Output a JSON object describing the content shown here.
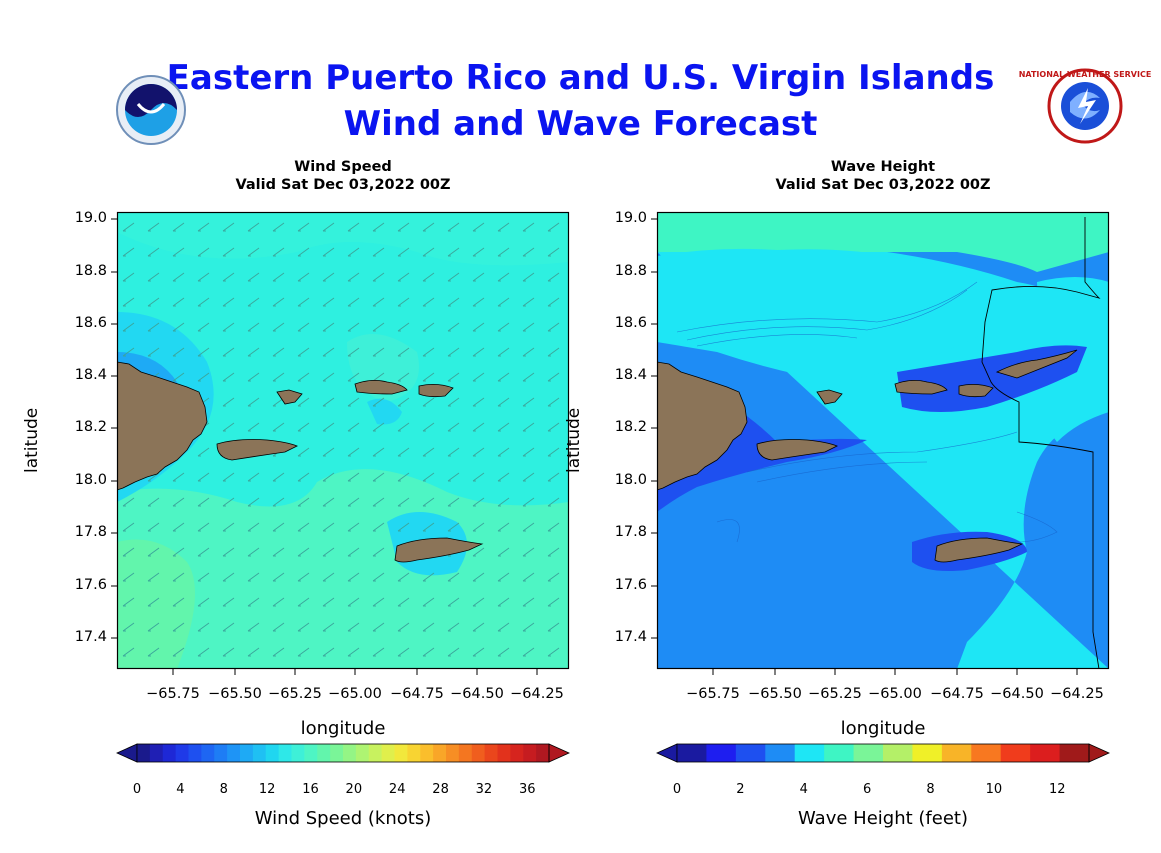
{
  "header": {
    "title_line1": "Eastern Puerto Rico and U.S. Virgin Islands",
    "title_line2": "Wind and Wave Forecast",
    "left_logo": "noaa-logo",
    "right_logo": "national-weather-service-logo",
    "right_logo_text": "NATIONAL WEATHER SERVICE"
  },
  "panels": {
    "wind": {
      "title_line1": "Wind Speed",
      "title_line2": "Valid Sat Dec 03,2022 00Z",
      "xlabel": "longitude",
      "ylabel": "latitude",
      "xticks": [
        "−65.75",
        "−65.50",
        "−65.25",
        "−65.00",
        "−64.75",
        "−64.50",
        "−64.25"
      ],
      "yticks": [
        "19.0",
        "18.8",
        "18.6",
        "18.4",
        "18.2",
        "18.0",
        "17.8",
        "17.6",
        "17.4"
      ],
      "colorbar_label": "Wind Speed (knots)",
      "colorbar_ticks": [
        "0",
        "4",
        "8",
        "12",
        "16",
        "20",
        "24",
        "28",
        "32",
        "36"
      ],
      "colorbar_colors": [
        "#1a1a8c",
        "#1f1fb4",
        "#1e28d6",
        "#1f3ae8",
        "#1e50f0",
        "#1e66f3",
        "#1e7df5",
        "#1e94f6",
        "#1eaaf5",
        "#1fc0f3",
        "#20d6f0",
        "#2ee8e8",
        "#3ef0d8",
        "#4ef5c4",
        "#62f5ac",
        "#7af598",
        "#94f585",
        "#aef472",
        "#c8f25f",
        "#e0ef4c",
        "#f2e83c",
        "#f8d432",
        "#fabe2c",
        "#f9a628",
        "#f78e24",
        "#f47620",
        "#f05e1e",
        "#ea461c",
        "#e2321c",
        "#d6241e",
        "#c61c20",
        "#b01820"
      ],
      "vector_direction": "from-northeast"
    },
    "wave": {
      "title_line1": "Wave Height",
      "title_line2": "Valid Sat Dec 03,2022 00Z",
      "xlabel": "longitude",
      "ylabel": "latitude",
      "xticks": [
        "−65.75",
        "−65.50",
        "−65.25",
        "−65.00",
        "−64.75",
        "−64.50",
        "−64.25"
      ],
      "yticks": [
        "19.0",
        "18.8",
        "18.6",
        "18.4",
        "18.2",
        "18.0",
        "17.8",
        "17.6",
        "17.4"
      ],
      "colorbar_label": "Wave Height (feet)",
      "colorbar_ticks": [
        "0",
        "2",
        "4",
        "6",
        "8",
        "10",
        "12"
      ],
      "colorbar_colors": [
        "#1a1aa0",
        "#1e1ef0",
        "#1e50f0",
        "#1e8cf5",
        "#1ee6f5",
        "#3ef5c4",
        "#7af598",
        "#b4f068",
        "#f0f028",
        "#f8b428",
        "#f87820",
        "#f03c1c",
        "#dc1e1e",
        "#a01a1a"
      ]
    }
  },
  "colors": {
    "title": "#0a14f0",
    "land": "#8b7458",
    "wind_field": "#2ef0d8",
    "wave_field": "#1ee6f5"
  }
}
